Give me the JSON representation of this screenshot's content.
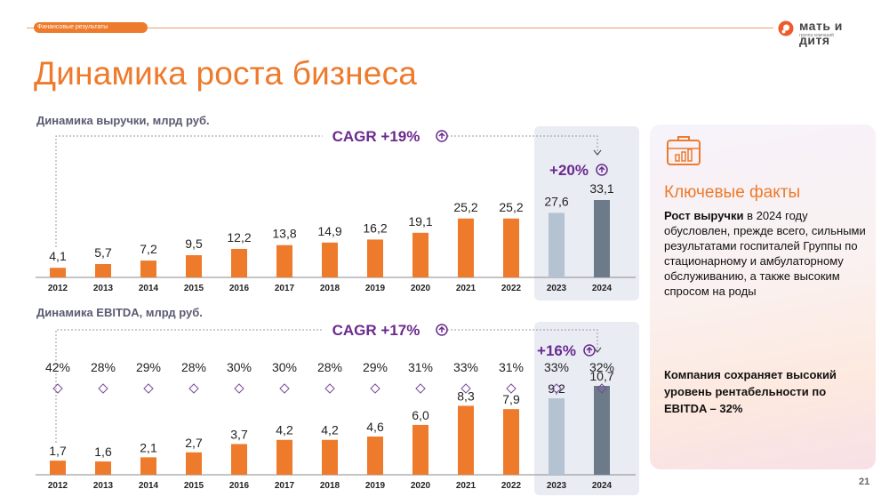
{
  "header": {
    "section_tag": "Финансовые результаты"
  },
  "logo": {
    "name": "мать и дитя",
    "subtitle": "группа компаний"
  },
  "page": {
    "title": "Динамика роста бизнеса",
    "number": "21"
  },
  "colors": {
    "orange": "#ee7a2b",
    "forecast_light": "#b4c2d1",
    "forecast_dark": "#6c7a8a",
    "purple": "#6a2a8e",
    "diamond": "#7a4a9a"
  },
  "chart_data": [
    {
      "type": "bar",
      "title": "Динамика выручки, млрд руб.",
      "categories": [
        "2012",
        "2013",
        "2014",
        "2015",
        "2016",
        "2017",
        "2018",
        "2019",
        "2020",
        "2021",
        "2022",
        "2023",
        "2024"
      ],
      "values": [
        4.1,
        5.7,
        7.2,
        9.5,
        12.2,
        13.8,
        14.9,
        16.2,
        19.1,
        25.2,
        25.2,
        27.6,
        33.1
      ],
      "value_labels": [
        "4,1",
        "5,7",
        "7,2",
        "9,5",
        "12,2",
        "13,8",
        "14,9",
        "16,2",
        "19,1",
        "25,2",
        "25,2",
        "27,6",
        "33,1"
      ],
      "ylim": [
        0,
        33.1
      ],
      "cagr_label": "CAGR +19%",
      "growth_label": "+20%",
      "highlighted_categories": [
        "2023",
        "2024"
      ]
    },
    {
      "type": "bar",
      "title": "Динамика EBITDA, млрд руб.",
      "categories": [
        "2012",
        "2013",
        "2014",
        "2015",
        "2016",
        "2017",
        "2018",
        "2019",
        "2020",
        "2021",
        "2022",
        "2023",
        "2024"
      ],
      "values": [
        1.7,
        1.6,
        2.1,
        2.7,
        3.7,
        4.2,
        4.2,
        4.6,
        6.0,
        8.3,
        7.9,
        9.2,
        10.7
      ],
      "value_labels": [
        "1,7",
        "1,6",
        "2,1",
        "2,7",
        "3,7",
        "4,2",
        "4,2",
        "4,6",
        "6,0",
        "8,3",
        "7,9",
        "9,2",
        "10,7"
      ],
      "margins": [
        "42%",
        "28%",
        "29%",
        "28%",
        "30%",
        "30%",
        "28%",
        "29%",
        "31%",
        "33%",
        "31%",
        "33%",
        "32%"
      ],
      "ylim": [
        0,
        10.7
      ],
      "cagr_label": "CAGR +17%",
      "growth_label": "+16%",
      "highlighted_categories": [
        "2023",
        "2024"
      ]
    }
  ],
  "facts": {
    "title": "Ключевые факты",
    "p1_bold": "Рост выручки",
    "p1_rest": " в 2024 году обусловлен, прежде всего, сильными результатами госпиталей Группы по стационарному и амбулаторному обслуживанию, а также высоким спросом на роды",
    "p2": "Компания сохраняет высокий уровень рентабельности по EBITDA – 32%",
    "icon": "briefcase-chart-icon"
  }
}
